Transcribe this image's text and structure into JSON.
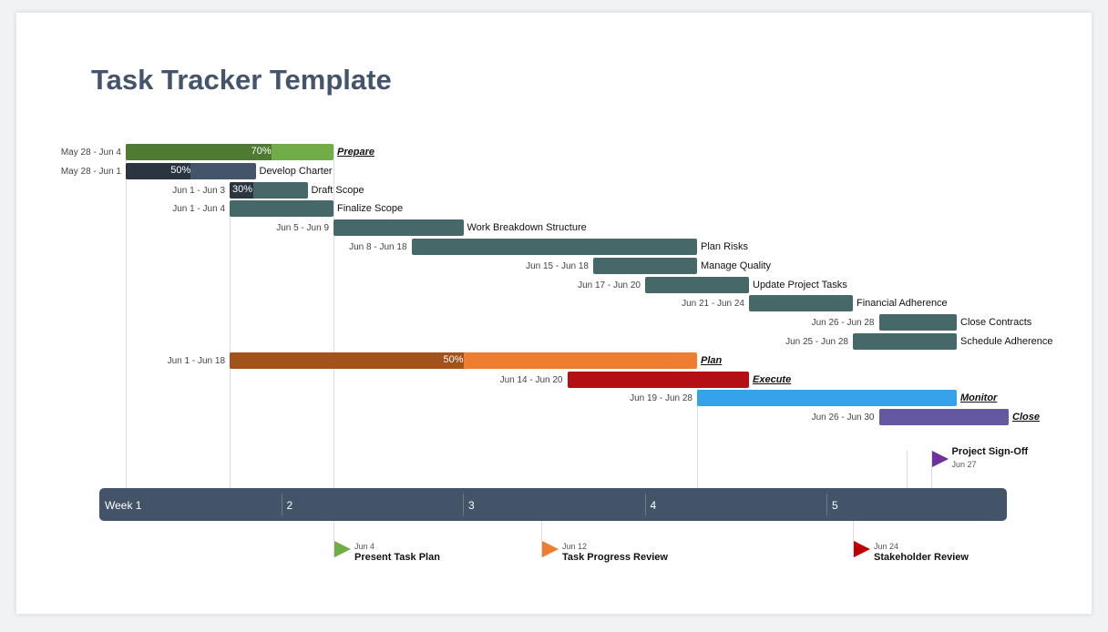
{
  "chart_data": {
    "type": "gantt",
    "title": "Task Tracker Template",
    "day_origin": "May 28",
    "tasks": [
      {
        "name": "Prepare",
        "dates": "May 28 - Jun 4",
        "start": 0,
        "end": 7,
        "color": "#70ad47",
        "progress_color": "#4e7a31",
        "progress": 70,
        "pct_label": "70%",
        "phase": true
      },
      {
        "name": "Develop Charter",
        "dates": "May 28 - Jun 1",
        "start": 0,
        "end": 4,
        "color": "#44546a",
        "progress_color": "#2a3540",
        "progress": 50,
        "pct_label": "50%"
      },
      {
        "name": "Draft Scope",
        "dates": "Jun 1 - Jun 3",
        "start": 4,
        "end": 6,
        "color": "#466868",
        "progress_color": "#2a3540",
        "progress": 30,
        "pct_label": "30%"
      },
      {
        "name": "Finalize Scope",
        "dates": "Jun 1 - Jun 4",
        "start": 4,
        "end": 7,
        "color": "#466868"
      },
      {
        "name": "Work Breakdown Structure",
        "dates": "Jun 5 - Jun 9",
        "start": 8,
        "end": 12,
        "color": "#466868"
      },
      {
        "name": "Plan Risks",
        "dates": "Jun 8 - Jun 18",
        "start": 11,
        "end": 21,
        "color": "#466868"
      },
      {
        "name": "Manage Quality",
        "dates": "Jun 15 - Jun 18",
        "start": 18,
        "end": 21,
        "color": "#466868"
      },
      {
        "name": "Update Project Tasks",
        "dates": "Jun 17 - Jun 20",
        "start": 20,
        "end": 23,
        "color": "#466868"
      },
      {
        "name": "Financial Adherence",
        "dates": "Jun 21 - Jun 24",
        "start": 24,
        "end": 27,
        "color": "#466868"
      },
      {
        "name": "Close Contracts",
        "dates": "Jun 26 - Jun 28",
        "start": 29,
        "end": 31,
        "color": "#466868"
      },
      {
        "name": "Schedule Adherence",
        "dates": "Jun 25 - Jun 28",
        "start": 28,
        "end": 31,
        "color": "#466868"
      },
      {
        "name": "Plan",
        "dates": "Jun 1 - Jun 18",
        "start": 4,
        "end": 21,
        "color": "#ed7d31",
        "progress_color": "#a0521f",
        "progress": 50,
        "pct_label": "50%",
        "phase": true
      },
      {
        "name": "Execute",
        "dates": "Jun 14 - Jun 20",
        "start": 17,
        "end": 23,
        "color": "#b30f14",
        "phase": true
      },
      {
        "name": "Monitor",
        "dates": "Jun 19 - Jun 28",
        "start": 22,
        "end": 31,
        "color": "#36a2eb",
        "phase": true
      },
      {
        "name": "Close",
        "dates": "Jun 26 - Jun 30",
        "start": 29,
        "end": 33,
        "color": "#6459a0",
        "phase": true
      }
    ],
    "weeks": [
      "Week 1",
      "2",
      "3",
      "4",
      "5"
    ],
    "milestones": [
      {
        "title": "Present Task Plan",
        "date": "Jun 4",
        "day": 7,
        "color": "#70ad47",
        "side": "below"
      },
      {
        "title": "Task Progress Review",
        "date": "Jun 12",
        "day": 15,
        "color": "#ed7d31",
        "side": "below"
      },
      {
        "title": "Stakeholder Review",
        "date": "Jun 24",
        "day": 27,
        "color": "#c00000",
        "side": "below"
      },
      {
        "title": "Project Sign-Off",
        "date": "Jun 27",
        "day": 30,
        "color": "#7030a0",
        "side": "above"
      }
    ]
  }
}
